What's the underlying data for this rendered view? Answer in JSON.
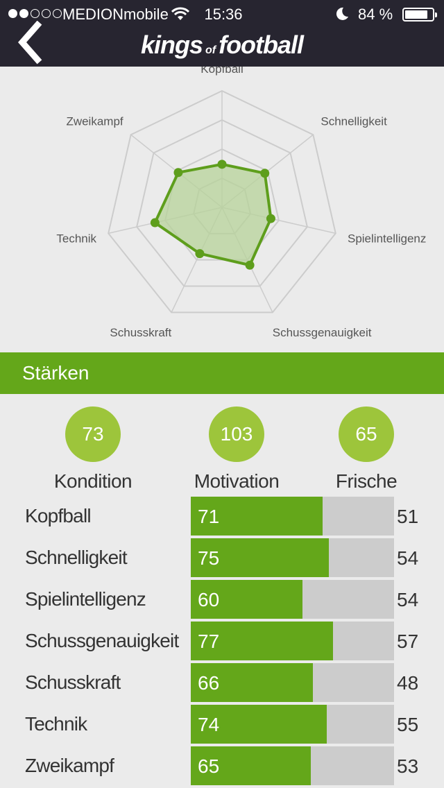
{
  "status_bar": {
    "carrier": "MEDIONmobile",
    "time": "15:36",
    "battery_percent": "84",
    "battery_unit": "%",
    "signal_bars": 2,
    "battery_level": 0.84
  },
  "header": {
    "logo_left": "kings",
    "logo_middle": "of",
    "logo_right": "football"
  },
  "radar": {
    "axes": [
      "Kopfball",
      "Schnelligkeit",
      "Spielintelligenz",
      "Schussgenauigkeit",
      "Schusskraft",
      "Technik",
      "Zweikampf"
    ],
    "values": [
      0.37,
      0.47,
      0.43,
      0.55,
      0.44,
      0.59,
      0.48
    ],
    "colors": {
      "grid": "#cccccc",
      "line": "#5e9e1c",
      "fill": "#b7d39a"
    }
  },
  "section": {
    "title": "Stärken"
  },
  "summary": [
    {
      "value": "73",
      "label": "Kondition"
    },
    {
      "value": "103",
      "label": "Motivation"
    },
    {
      "value": "65",
      "label": "Frische"
    }
  ],
  "stats": [
    {
      "label": "Kopfball",
      "value": "71",
      "compare": "51",
      "fill": 0.65
    },
    {
      "label": "Schnelligkeit",
      "value": "75",
      "compare": "54",
      "fill": 0.68
    },
    {
      "label": "Spielintelligenz",
      "value": "60",
      "compare": "54",
      "fill": 0.55
    },
    {
      "label": "Schussgenauigkeit",
      "value": "77",
      "compare": "57",
      "fill": 0.7
    },
    {
      "label": "Schusskraft",
      "value": "66",
      "compare": "48",
      "fill": 0.6
    },
    {
      "label": "Technik",
      "value": "74",
      "compare": "55",
      "fill": 0.67
    },
    {
      "label": "Zweikampf",
      "value": "65",
      "compare": "53",
      "fill": 0.59
    }
  ],
  "colors": {
    "accent": "#64a71a",
    "circle": "#9dc53b",
    "header_bg": "#272530"
  }
}
